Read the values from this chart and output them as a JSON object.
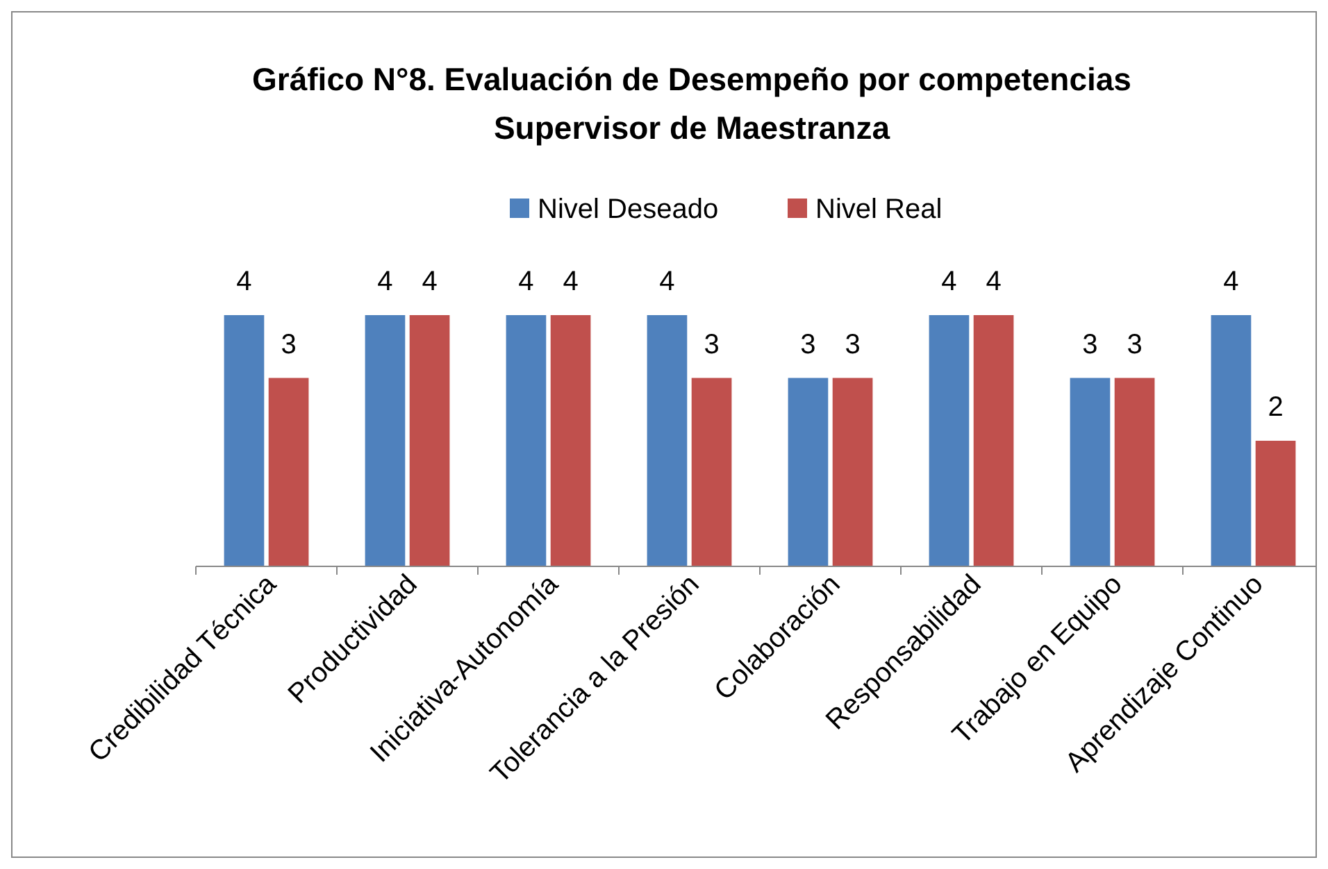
{
  "chart_data": {
    "type": "bar",
    "title": "Gráfico N°8. Evaluación de Desempeño por competencias",
    "subtitle": "Supervisor de Maestranza",
    "categories": [
      "Credibilidad Técnica",
      "Productividad",
      "Iniciativa-Autonomía",
      "Tolerancia a la Presión",
      "Colaboración",
      "Responsabilidad",
      "Trabajo en Equipo",
      "Aprendizaje Continuo"
    ],
    "series": [
      {
        "name": "Nivel Deseado",
        "color": "#4f81bd",
        "values": [
          4,
          4,
          4,
          4,
          3,
          4,
          3,
          4
        ]
      },
      {
        "name": "Nivel Real",
        "color": "#c0504d",
        "values": [
          3,
          4,
          4,
          3,
          3,
          4,
          3,
          2
        ]
      }
    ],
    "data_labels": true,
    "legend": "top",
    "grid": false
  }
}
